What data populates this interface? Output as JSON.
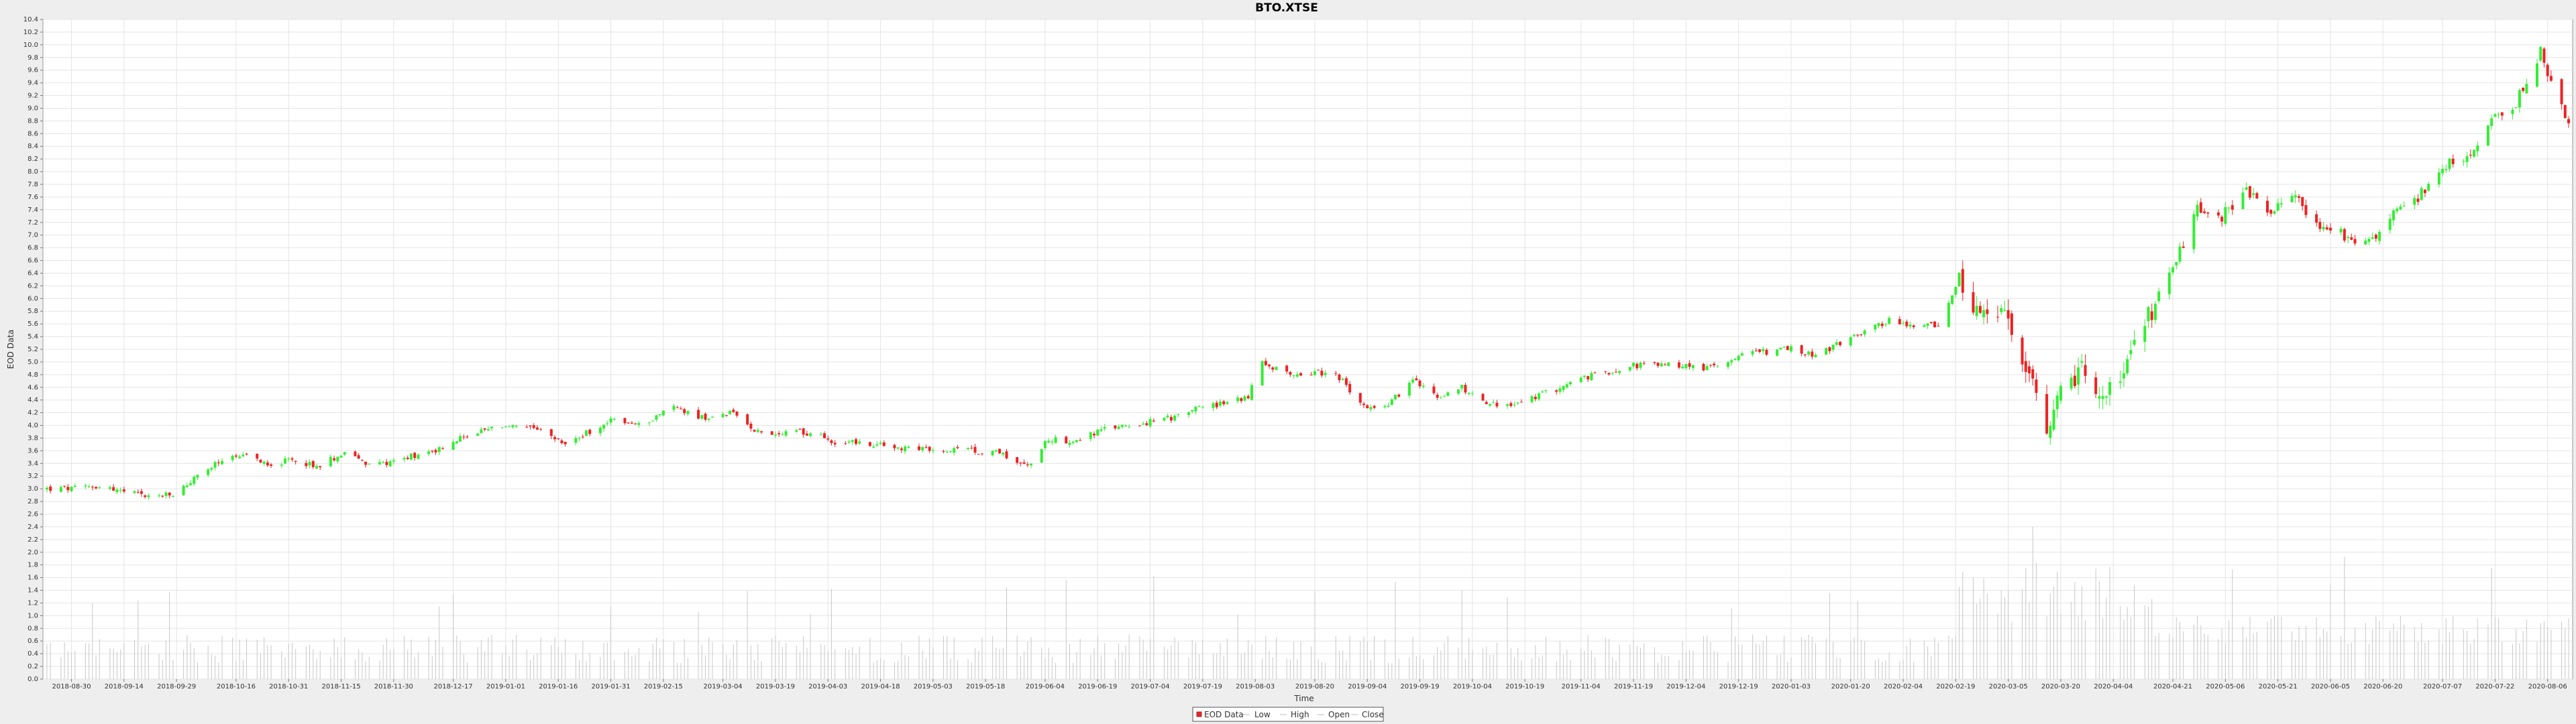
{
  "chart_data": {
    "type": "candlestick",
    "title": "BTO.XTSE",
    "xlabel": "Time",
    "ylabel": "EOD Data",
    "ylim": [
      0,
      10.4
    ],
    "yticks": [
      "0.0",
      "0.2",
      "0.4",
      "0.6",
      "0.8",
      "1.0",
      "1.2",
      "1.4",
      "1.6",
      "1.8",
      "2.0",
      "2.2",
      "2.4",
      "2.6",
      "2.8",
      "3.0",
      "3.2",
      "3.4",
      "3.6",
      "3.8",
      "4.0",
      "4.2",
      "4.4",
      "4.6",
      "4.8",
      "5.0",
      "5.2",
      "5.4",
      "5.6",
      "5.8",
      "6.0",
      "6.2",
      "6.4",
      "6.6",
      "6.8",
      "7.0",
      "7.2",
      "7.4",
      "7.6",
      "7.8",
      "8.0",
      "8.2",
      "8.4",
      "8.6",
      "8.8",
      "9.0",
      "9.2",
      "9.4",
      "9.6",
      "9.8",
      "10.0",
      "10.2",
      "10.4"
    ],
    "xticks": [
      "2018-08-30",
      "2018-09-14",
      "2018-09-29",
      "2018-10-16",
      "2018-10-31",
      "2018-11-15",
      "2018-11-30",
      "2018-12-17",
      "2019-01-01",
      "2019-01-16",
      "2019-01-31",
      "2019-02-15",
      "2019-03-04",
      "2019-03-19",
      "2019-04-03",
      "2019-04-18",
      "2019-05-03",
      "2019-05-18",
      "2019-06-04",
      "2019-06-19",
      "2019-07-04",
      "2019-07-19",
      "2019-08-03",
      "2019-08-20",
      "2019-09-04",
      "2019-09-19",
      "2019-10-04",
      "2019-10-19",
      "2019-11-04",
      "2019-11-19",
      "2019-12-04",
      "2019-12-19",
      "2020-01-03",
      "2020-01-20",
      "2020-02-04",
      "2020-02-19",
      "2020-03-05",
      "2020-03-20",
      "2020-04-04",
      "2020-04-21",
      "2020-05-06",
      "2020-05-21",
      "2020-06-05",
      "2020-06-20",
      "2020-07-07",
      "2020-07-22",
      "2020-08-06"
    ],
    "x_start": "2018-08-23",
    "x_end": "2020-08-12",
    "price_anchors": [
      [
        "2018-08-23",
        3.0
      ],
      [
        "2018-08-31",
        3.0
      ],
      [
        "2018-09-07",
        3.05
      ],
      [
        "2018-09-14",
        2.95
      ],
      [
        "2018-09-21",
        2.88
      ],
      [
        "2018-09-28",
        2.9
      ],
      [
        "2018-10-05",
        3.2
      ],
      [
        "2018-10-12",
        3.45
      ],
      [
        "2018-10-19",
        3.5
      ],
      [
        "2018-10-26",
        3.4
      ],
      [
        "2018-11-02",
        3.45
      ],
      [
        "2018-11-09",
        3.35
      ],
      [
        "2018-11-16",
        3.6
      ],
      [
        "2018-11-23",
        3.35
      ],
      [
        "2018-11-30",
        3.45
      ],
      [
        "2018-12-07",
        3.55
      ],
      [
        "2018-12-14",
        3.65
      ],
      [
        "2018-12-21",
        3.85
      ],
      [
        "2019-01-01",
        4.0
      ],
      [
        "2019-01-10",
        3.92
      ],
      [
        "2019-01-18",
        3.7
      ],
      [
        "2019-01-25",
        3.9
      ],
      [
        "2019-02-01",
        4.1
      ],
      [
        "2019-02-08",
        4.0
      ],
      [
        "2019-02-18",
        4.3
      ],
      [
        "2019-02-27",
        4.1
      ],
      [
        "2019-03-06",
        4.2
      ],
      [
        "2019-03-13",
        3.95
      ],
      [
        "2019-03-20",
        3.85
      ],
      [
        "2019-03-27",
        3.9
      ],
      [
        "2019-04-05",
        3.75
      ],
      [
        "2019-04-15",
        3.7
      ],
      [
        "2019-04-25",
        3.65
      ],
      [
        "2019-05-03",
        3.6
      ],
      [
        "2019-05-13",
        3.6
      ],
      [
        "2019-05-22",
        3.58
      ],
      [
        "2019-05-30",
        3.35
      ],
      [
        "2019-06-05",
        3.8
      ],
      [
        "2019-06-12",
        3.75
      ],
      [
        "2019-06-19",
        3.9
      ],
      [
        "2019-06-26",
        4.0
      ],
      [
        "2019-07-04",
        4.05
      ],
      [
        "2019-07-12",
        4.15
      ],
      [
        "2019-07-19",
        4.3
      ],
      [
        "2019-07-26",
        4.35
      ],
      [
        "2019-08-01",
        4.45
      ],
      [
        "2019-08-05",
        5.0
      ],
      [
        "2019-08-12",
        4.8
      ],
      [
        "2019-08-20",
        4.85
      ],
      [
        "2019-08-27",
        4.75
      ],
      [
        "2019-09-03",
        4.3
      ],
      [
        "2019-09-10",
        4.35
      ],
      [
        "2019-09-17",
        4.7
      ],
      [
        "2019-09-24",
        4.45
      ],
      [
        "2019-10-01",
        4.6
      ],
      [
        "2019-10-08",
        4.35
      ],
      [
        "2019-10-15",
        4.3
      ],
      [
        "2019-10-22",
        4.45
      ],
      [
        "2019-10-29",
        4.6
      ],
      [
        "2019-11-05",
        4.75
      ],
      [
        "2019-11-12",
        4.85
      ],
      [
        "2019-11-19",
        4.95
      ],
      [
        "2019-11-26",
        4.95
      ],
      [
        "2019-12-03",
        4.95
      ],
      [
        "2019-12-10",
        4.9
      ],
      [
        "2019-12-17",
        5.05
      ],
      [
        "2019-12-24",
        5.15
      ],
      [
        "2020-01-03",
        5.2
      ],
      [
        "2020-01-10",
        5.1
      ],
      [
        "2020-01-17",
        5.3
      ],
      [
        "2020-01-24",
        5.5
      ],
      [
        "2020-01-31",
        5.65
      ],
      [
        "2020-02-07",
        5.55
      ],
      [
        "2020-02-14",
        5.6
      ],
      [
        "2020-02-20",
        6.3
      ],
      [
        "2020-02-26",
        5.6
      ],
      [
        "2020-03-02",
        5.8
      ],
      [
        "2020-03-06",
        5.5
      ],
      [
        "2020-03-12",
        4.6
      ],
      [
        "2020-03-16",
        3.7
      ],
      [
        "2020-03-20",
        4.5
      ],
      [
        "2020-03-26",
        4.9
      ],
      [
        "2020-03-31",
        4.4
      ],
      [
        "2020-04-07",
        4.8
      ],
      [
        "2020-04-14",
        5.7
      ],
      [
        "2020-04-21",
        6.5
      ],
      [
        "2020-04-28",
        7.4
      ],
      [
        "2020-05-05",
        7.3
      ],
      [
        "2020-05-12",
        7.7
      ],
      [
        "2020-05-19",
        7.4
      ],
      [
        "2020-05-26",
        7.6
      ],
      [
        "2020-06-02",
        7.1
      ],
      [
        "2020-06-09",
        7.0
      ],
      [
        "2020-06-16",
        6.9
      ],
      [
        "2020-06-23",
        7.3
      ],
      [
        "2020-06-30",
        7.6
      ],
      [
        "2020-07-07",
        8.1
      ],
      [
        "2020-07-14",
        8.2
      ],
      [
        "2020-07-21",
        8.8
      ],
      [
        "2020-07-28",
        9.1
      ],
      [
        "2020-08-04",
        9.9
      ],
      [
        "2020-08-07",
        9.4
      ],
      [
        "2020-08-12",
        8.8
      ]
    ],
    "volume_range": [
      0.0,
      2.4
    ],
    "legend": [
      "EOD Data",
      "Low",
      "High",
      "Open",
      "Close"
    ],
    "legend_position": "bottom-center",
    "colors": {
      "up": "#33ee33",
      "down": "#ee2222",
      "volume": "#c8c8c8",
      "grid": "#e4e4e4",
      "plot_bg": "#ffffff",
      "page_bg": "#eeeeee"
    }
  }
}
